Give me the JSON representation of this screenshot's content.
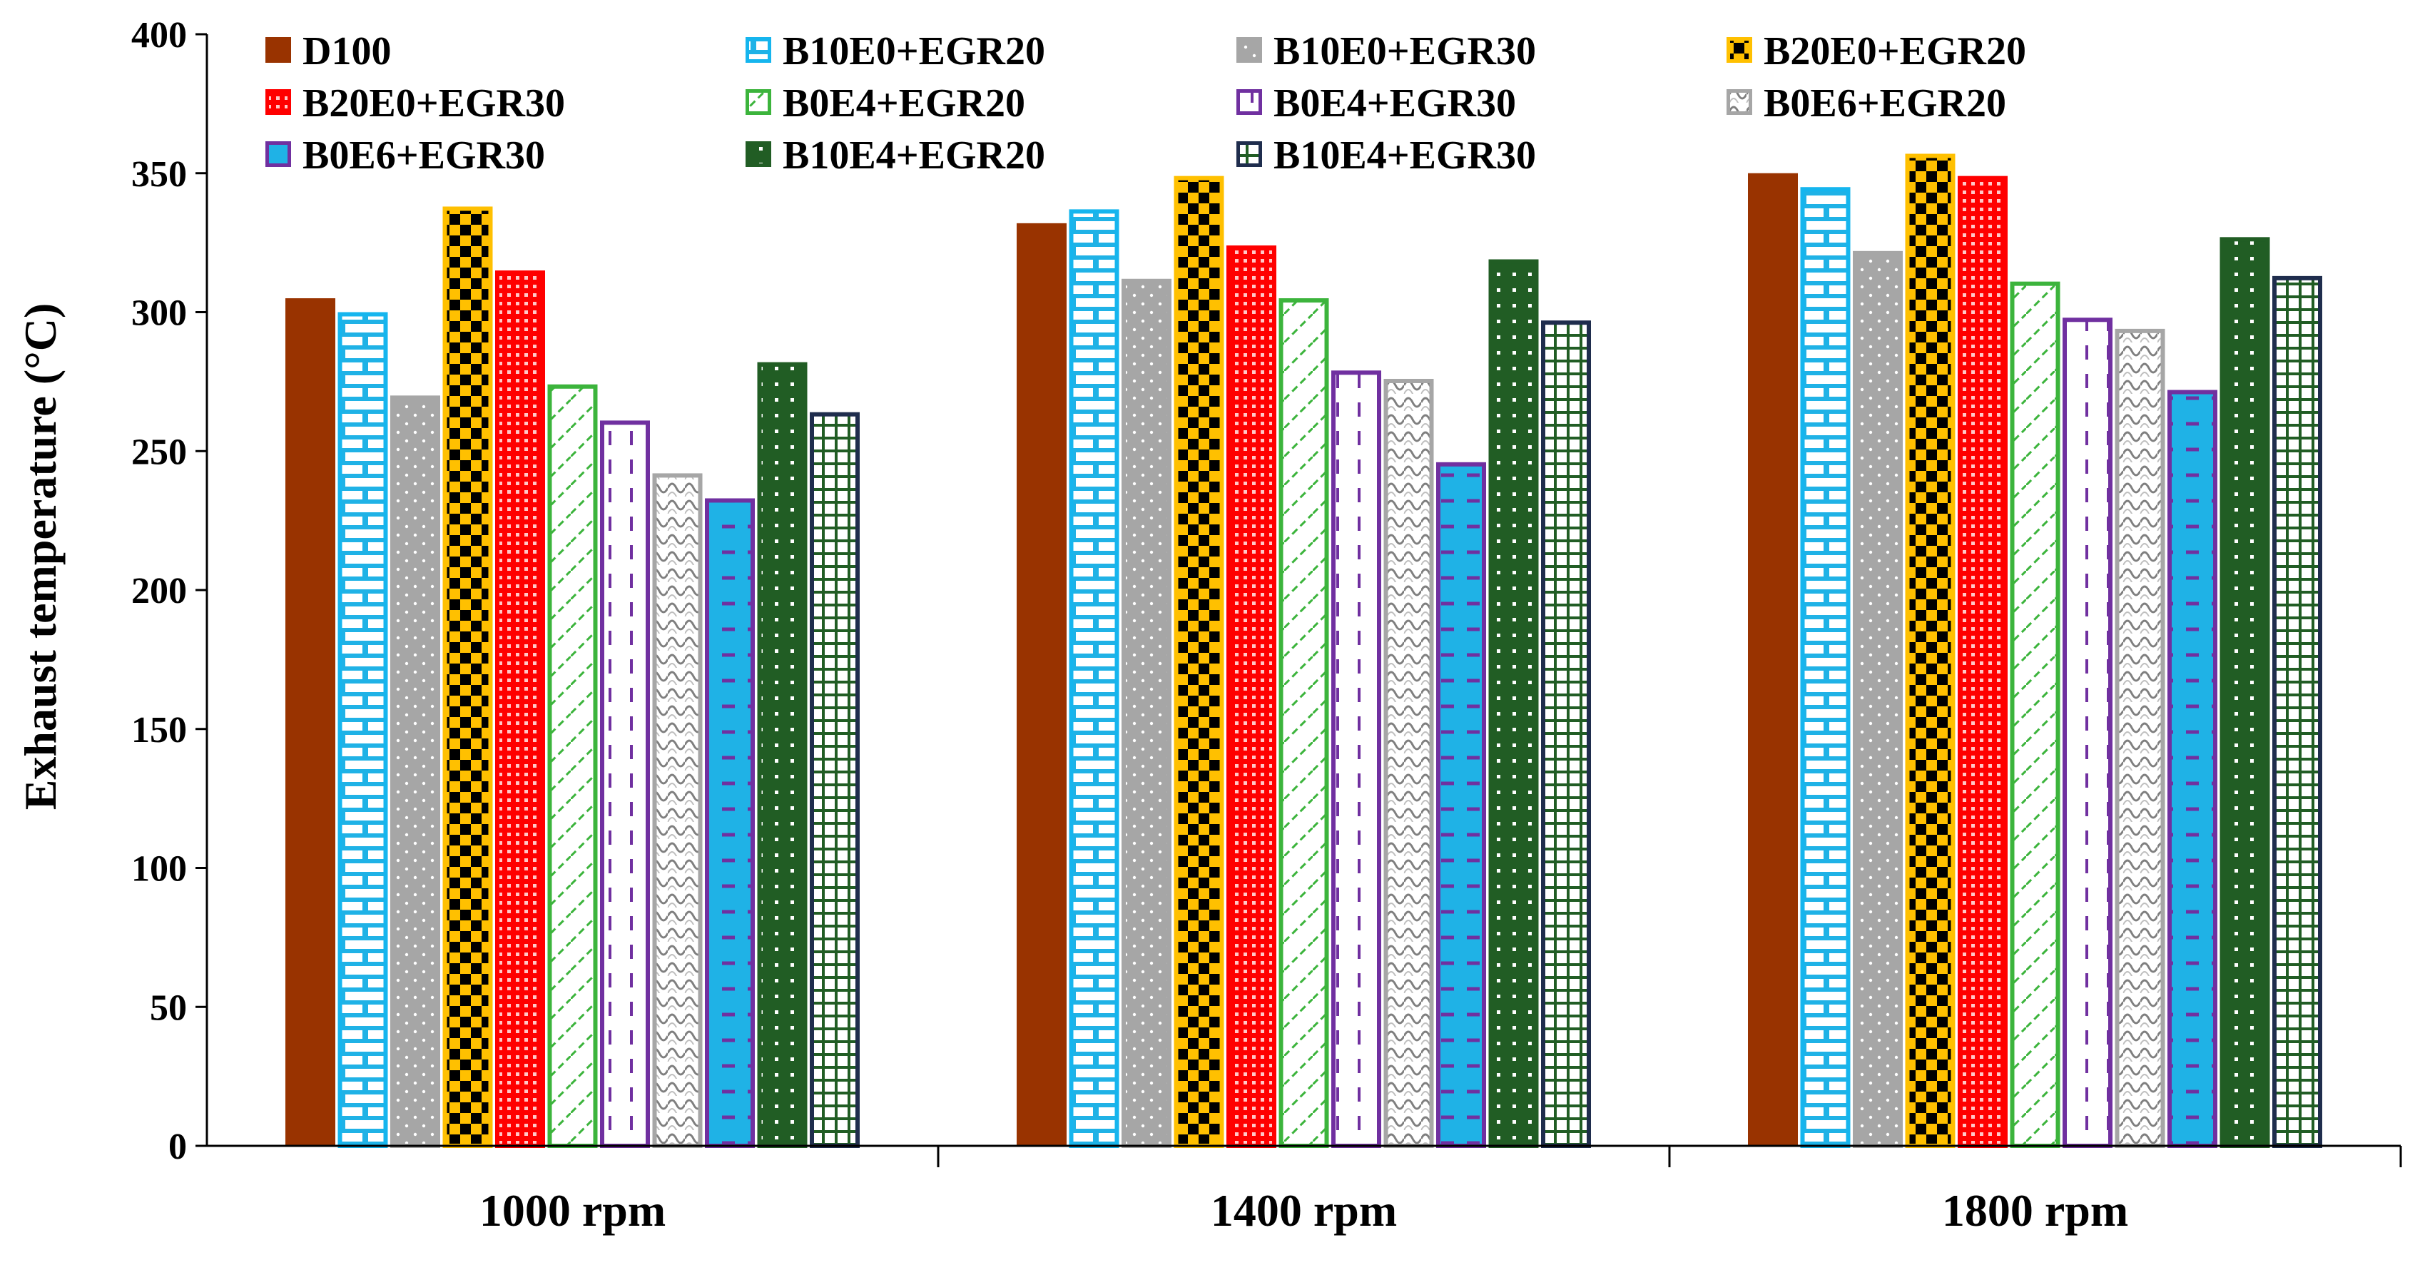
{
  "chart_data": {
    "type": "bar",
    "title": "",
    "xlabel": "",
    "ylabel": "Exhaust temperature (°C)",
    "ylim": [
      0,
      400
    ],
    "yticks": [
      0,
      50,
      100,
      150,
      200,
      250,
      300,
      350,
      400
    ],
    "grid": false,
    "legend_position": "top",
    "categories": [
      "1000 rpm",
      "1400 rpm",
      "1800 rpm"
    ],
    "series": [
      {
        "name": "D100",
        "values": [
          305,
          332,
          350
        ],
        "fill": "#993300",
        "border": "#993300",
        "pattern": "solid"
      },
      {
        "name": "B10E0+EGR20",
        "values": [
          300,
          337,
          345
        ],
        "fill": "#1fb2e6",
        "border": "#15b5ee",
        "pattern": "brick"
      },
      {
        "name": "B10E0+EGR30",
        "values": [
          270,
          312,
          322
        ],
        "fill": "#a6a6a6",
        "border": "#a6a6a6",
        "pattern": "dots"
      },
      {
        "name": "B20E0+EGR20",
        "values": [
          338,
          349,
          357
        ],
        "fill": "#000000",
        "border": "#ffc000",
        "pattern": "checker"
      },
      {
        "name": "B20E0+EGR30",
        "values": [
          315,
          324,
          349
        ],
        "fill": "#ff0000",
        "border": "#ff0000",
        "pattern": "grid"
      },
      {
        "name": "B0E4+EGR20",
        "values": [
          274,
          305,
          311
        ],
        "fill": "#ffffff",
        "border": "#3cb43c",
        "pattern": "hatch"
      },
      {
        "name": "B0E4+EGR30",
        "values": [
          261,
          279,
          298
        ],
        "fill": "#ffffff",
        "border": "#7030a0",
        "pattern": "dash"
      },
      {
        "name": "B0E6+EGR20",
        "values": [
          242,
          276,
          294
        ],
        "fill": "#ffffff",
        "border": "#a6a6a6",
        "pattern": "weave"
      },
      {
        "name": "B0E6+EGR30",
        "values": [
          233,
          246,
          272
        ],
        "fill": "#1fb2e6",
        "border": "#7030a0",
        "pattern": "blueDash"
      },
      {
        "name": "B10E4+EGR20",
        "values": [
          282,
          319,
          327
        ],
        "fill": "#215d24",
        "border": "#215d24",
        "pattern": "darkDots"
      },
      {
        "name": "B10E4+EGR30",
        "values": [
          264,
          297,
          313
        ],
        "fill": "#ffffff",
        "border": "#1f2d4d",
        "pattern": "greenGrid"
      }
    ]
  }
}
